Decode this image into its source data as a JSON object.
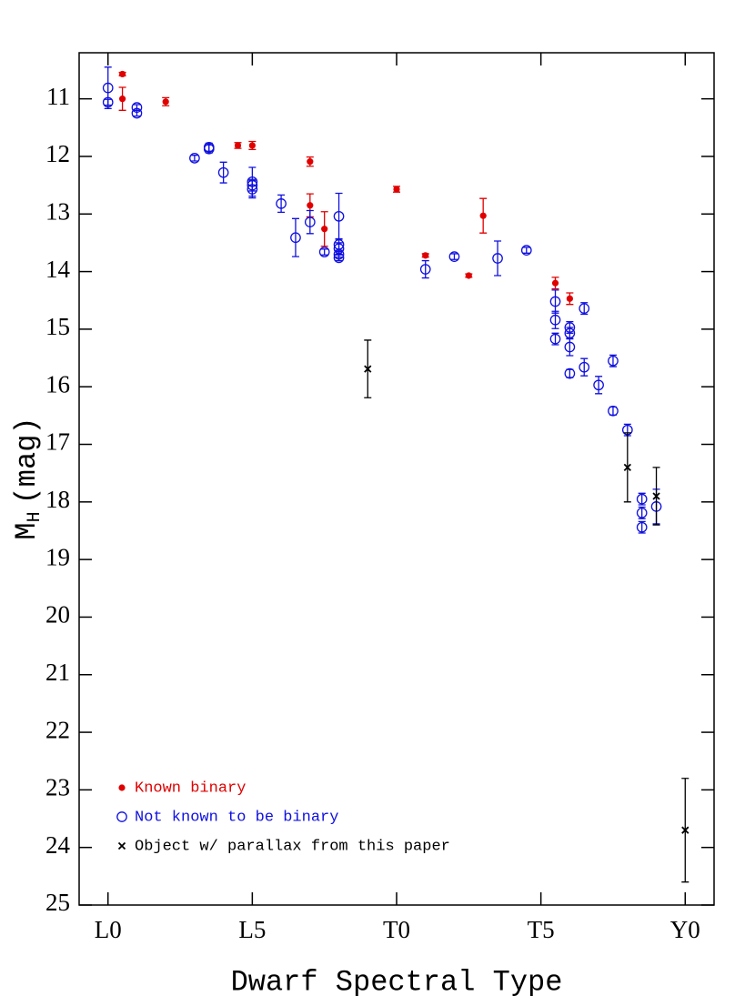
{
  "chart_data": {
    "type": "scatter",
    "xlabel": "Dwarf Spectral Type",
    "ylabel": {
      "main": "M",
      "subscript": "H",
      "unit": "(mag)"
    },
    "xlim": [
      -1,
      21
    ],
    "ylim": [
      10.2,
      25
    ],
    "y_inverted": true,
    "xticks": [
      {
        "value": 0,
        "label": "L0"
      },
      {
        "value": 5,
        "label": "L5"
      },
      {
        "value": 10,
        "label": "T0"
      },
      {
        "value": 15,
        "label": "T5"
      },
      {
        "value": 20,
        "label": "Y0"
      }
    ],
    "yticks": [
      11,
      12,
      13,
      14,
      15,
      16,
      17,
      18,
      19,
      20,
      21,
      22,
      23,
      24,
      25
    ],
    "legend": "lower left",
    "series": [
      {
        "name": "Known binary",
        "color": "#e00000",
        "marker": "filled-circle",
        "x": [
          0.5,
          0.5,
          2.0,
          4.5,
          5.0,
          7.0,
          7.0,
          7.5,
          10.0,
          11.0,
          12.5,
          13.0,
          15.5,
          16.0
        ],
        "values": [
          10.57,
          11.0,
          11.05,
          11.81,
          11.81,
          12.09,
          12.85,
          13.26,
          12.57,
          13.72,
          14.07,
          13.03,
          14.2,
          14.47
        ],
        "errors": [
          0.03,
          0.2,
          0.07,
          0.05,
          0.07,
          0.08,
          0.2,
          0.3,
          0.05,
          0.03,
          0.03,
          0.3,
          0.1,
          0.1
        ]
      },
      {
        "name": "Not known to be binary",
        "color": "#1010e0",
        "marker": "open-circle",
        "x": [
          0,
          0,
          1.0,
          1.0,
          3.0,
          3.5,
          3.5,
          4.0,
          5.0,
          5.0,
          5.0,
          6.0,
          6.5,
          7.0,
          7.5,
          8.0,
          8.0,
          8.0,
          8.0,
          8.0,
          11.0,
          12.0,
          13.5,
          14.5,
          15.5,
          15.5,
          15.5,
          16.0,
          16.0,
          16.0,
          16.0,
          16.5,
          16.5,
          17.0,
          17.5,
          17.5,
          18.0,
          18.5,
          18.5,
          18.5,
          19.0
        ],
        "values": [
          10.81,
          11.06,
          11.15,
          11.25,
          12.03,
          11.84,
          11.87,
          12.28,
          12.44,
          12.5,
          12.57,
          12.82,
          13.41,
          13.14,
          13.66,
          13.04,
          13.53,
          13.6,
          13.7,
          13.76,
          13.96,
          13.74,
          13.77,
          13.63,
          14.52,
          14.84,
          15.17,
          14.97,
          15.07,
          15.31,
          15.77,
          14.64,
          15.66,
          15.97,
          15.55,
          16.42,
          16.75,
          17.95,
          18.19,
          18.44,
          18.08
        ],
        "errors": [
          0.36,
          0.05,
          0.05,
          0.05,
          0.05,
          0.07,
          0.07,
          0.18,
          0.25,
          0.1,
          0.15,
          0.15,
          0.33,
          0.2,
          0.05,
          0.4,
          0.1,
          0.1,
          0.05,
          0.05,
          0.15,
          0.05,
          0.3,
          0.05,
          0.2,
          0.15,
          0.1,
          0.1,
          0.1,
          0.15,
          0.07,
          0.1,
          0.15,
          0.15,
          0.1,
          0.07,
          0.1,
          0.1,
          0.1,
          0.1,
          0.3
        ]
      },
      {
        "name": "Object w/ parallax from this paper",
        "color": "#000000",
        "marker": "cross",
        "x": [
          9.0,
          18.0,
          19.0,
          20.0
        ],
        "values": [
          15.69,
          17.4,
          17.9,
          23.7
        ],
        "errors": [
          0.5,
          0.6,
          0.5,
          0.9
        ]
      }
    ]
  }
}
